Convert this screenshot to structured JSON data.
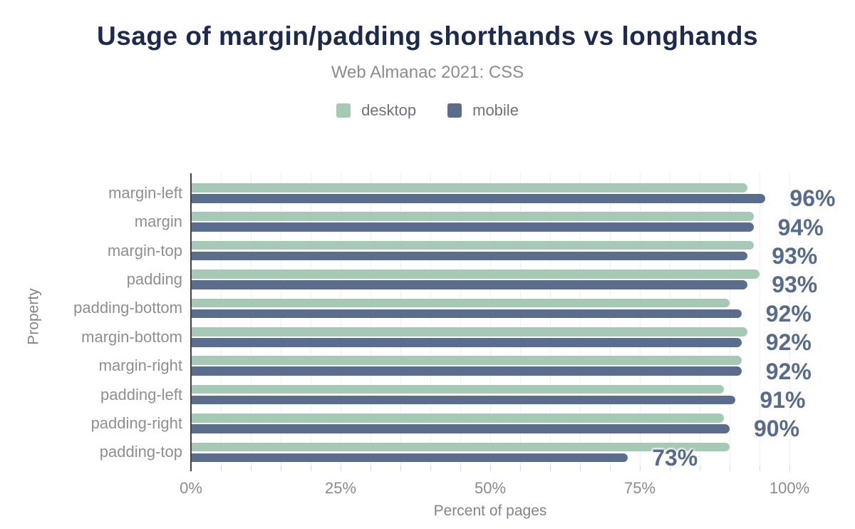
{
  "header": {
    "title": "Usage of margin/padding shorthands vs longhands",
    "subtitle": "Web Almanac 2021: CSS"
  },
  "chart_data": {
    "type": "bar",
    "orientation": "horizontal",
    "title": "Usage of margin/padding shorthands vs longhands",
    "subtitle": "Web Almanac 2021: CSS",
    "xlabel": "Percent of pages",
    "ylabel": "Property",
    "xlim": [
      0,
      100
    ],
    "x_ticks": [
      {
        "value": 0,
        "label": "0%"
      },
      {
        "value": 25,
        "label": "25%"
      },
      {
        "value": 50,
        "label": "50%"
      },
      {
        "value": 75,
        "label": "75%"
      },
      {
        "value": 100,
        "label": "100%"
      }
    ],
    "grid": true,
    "grid_step_pct": 5,
    "legend_position": "top-center",
    "categories": [
      "margin-left",
      "margin",
      "margin-top",
      "padding",
      "padding-bottom",
      "margin-bottom",
      "margin-right",
      "padding-left",
      "padding-right",
      "padding-top"
    ],
    "series": [
      {
        "name": "desktop",
        "color": "#a6c9b6",
        "values": [
          93,
          94,
          94,
          95,
          90,
          93,
          92,
          89,
          89,
          90
        ]
      },
      {
        "name": "mobile",
        "color": "#5b6d8d",
        "values": [
          96,
          94,
          93,
          93,
          92,
          92,
          92,
          91,
          90,
          73
        ]
      }
    ],
    "value_labels": {
      "labeled_series": "mobile",
      "texts": [
        "96%",
        "94%",
        "93%",
        "93%",
        "92%",
        "92%",
        "92%",
        "91%",
        "90%",
        "73%"
      ],
      "color": "#566b8d"
    }
  },
  "colors": {
    "title": "#1b2a4e",
    "subtitle": "#8c8c8c",
    "legend_text": "#71717b",
    "category_text": "#8e8e96",
    "tick_text": "#8a8a93",
    "axis_title_text": "#83838d",
    "axis_line": "#3c4350",
    "gridline": "#efeff4",
    "background": "#ffffff"
  }
}
